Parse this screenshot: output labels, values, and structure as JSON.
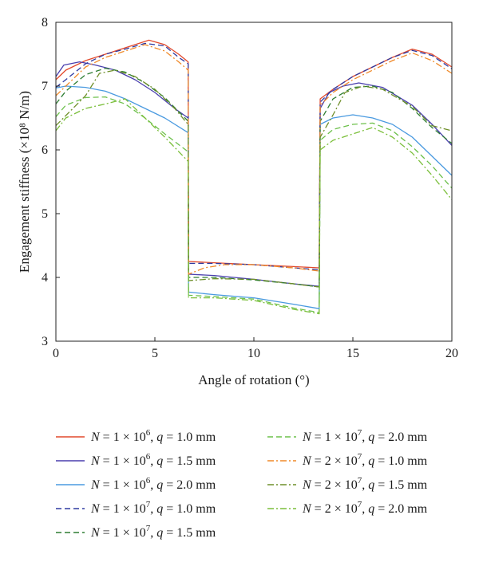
{
  "chart_data": {
    "type": "line",
    "xlabel": "Angle of rotation (°)",
    "ylabel": "Engagement stiffness (×10⁸ N/m)",
    "xlim": [
      0,
      20
    ],
    "ylim": [
      3,
      8
    ],
    "xticks": [
      0,
      5,
      10,
      15,
      20
    ],
    "yticks": [
      3,
      4,
      5,
      6,
      7,
      8
    ],
    "grid": false,
    "legend_position": "bottom",
    "series": [
      {
        "name": "N = 1 × 10^6, q = 1.0 mm",
        "label": {
          "N_mant": "1",
          "N_exp": "6",
          "q": "1.0 mm"
        },
        "color": "#e2492c",
        "dash": "solid",
        "points": [
          [
            0,
            7.1
          ],
          [
            0.5,
            7.25
          ],
          [
            1.5,
            7.4
          ],
          [
            2.5,
            7.5
          ],
          [
            3.5,
            7.6
          ],
          [
            4.7,
            7.72
          ],
          [
            5.5,
            7.65
          ],
          [
            6.2,
            7.5
          ],
          [
            6.68,
            7.38
          ],
          [
            6.7,
            4.25
          ],
          [
            8,
            4.23
          ],
          [
            10,
            4.2
          ],
          [
            12,
            4.17
          ],
          [
            13.3,
            4.15
          ],
          [
            13.35,
            6.8
          ],
          [
            14,
            6.95
          ],
          [
            15,
            7.15
          ],
          [
            16,
            7.3
          ],
          [
            17,
            7.45
          ],
          [
            18,
            7.58
          ],
          [
            19,
            7.5
          ],
          [
            20,
            7.3
          ]
        ]
      },
      {
        "name": "N = 1 × 10^6, q = 1.5 mm",
        "label": {
          "N_mant": "1",
          "N_exp": "6",
          "q": "1.5 mm"
        },
        "color": "#4a3fae",
        "dash": "solid",
        "points": [
          [
            0,
            7.15
          ],
          [
            0.4,
            7.33
          ],
          [
            1.2,
            7.38
          ],
          [
            2,
            7.33
          ],
          [
            3,
            7.25
          ],
          [
            4,
            7.1
          ],
          [
            5,
            6.9
          ],
          [
            6,
            6.65
          ],
          [
            6.68,
            6.5
          ],
          [
            6.7,
            4.05
          ],
          [
            8,
            4.03
          ],
          [
            10,
            3.97
          ],
          [
            12,
            3.9
          ],
          [
            13.3,
            3.86
          ],
          [
            13.35,
            6.65
          ],
          [
            13.8,
            6.9
          ],
          [
            14.5,
            7.0
          ],
          [
            15.3,
            7.05
          ],
          [
            16.5,
            6.98
          ],
          [
            18,
            6.7
          ],
          [
            19,
            6.4
          ],
          [
            20,
            6.07
          ]
        ]
      },
      {
        "name": "N = 1 × 10^6, q = 2.0 mm",
        "label": {
          "N_mant": "1",
          "N_exp": "6",
          "q": "2.0 mm"
        },
        "color": "#4a9ae0",
        "dash": "solid",
        "points": [
          [
            0,
            6.97
          ],
          [
            0.5,
            7.0
          ],
          [
            1.5,
            6.98
          ],
          [
            2.5,
            6.92
          ],
          [
            3.5,
            6.8
          ],
          [
            4.5,
            6.65
          ],
          [
            5.5,
            6.5
          ],
          [
            6.68,
            6.27
          ],
          [
            6.7,
            3.77
          ],
          [
            8,
            3.73
          ],
          [
            10,
            3.68
          ],
          [
            12,
            3.58
          ],
          [
            13.3,
            3.51
          ],
          [
            13.35,
            6.4
          ],
          [
            14,
            6.5
          ],
          [
            15,
            6.55
          ],
          [
            16,
            6.5
          ],
          [
            17,
            6.4
          ],
          [
            18,
            6.2
          ],
          [
            19,
            5.9
          ],
          [
            20,
            5.6
          ]
        ]
      },
      {
        "name": "N = 1 × 10^7, q = 1.0 mm",
        "label": {
          "N_mant": "1",
          "N_exp": "7",
          "q": "1.0 mm"
        },
        "color": "#2f3aa0",
        "dash": "dashed",
        "points": [
          [
            0,
            6.98
          ],
          [
            0.5,
            7.1
          ],
          [
            1.5,
            7.35
          ],
          [
            2.5,
            7.5
          ],
          [
            3.5,
            7.58
          ],
          [
            4.5,
            7.67
          ],
          [
            5.5,
            7.63
          ],
          [
            6.2,
            7.45
          ],
          [
            6.68,
            7.35
          ],
          [
            6.7,
            4.22
          ],
          [
            8,
            4.22
          ],
          [
            10,
            4.2
          ],
          [
            12,
            4.15
          ],
          [
            13.3,
            4.12
          ],
          [
            13.35,
            6.75
          ],
          [
            14,
            6.95
          ],
          [
            15,
            7.15
          ],
          [
            16,
            7.3
          ],
          [
            17,
            7.45
          ],
          [
            18,
            7.56
          ],
          [
            19,
            7.48
          ],
          [
            20,
            7.27
          ]
        ]
      },
      {
        "name": "N = 1 × 10^7, q = 1.5 mm",
        "label": {
          "N_mant": "1",
          "N_exp": "7",
          "q": "1.5 mm"
        },
        "color": "#2e7d32",
        "dash": "dashed",
        "points": [
          [
            0,
            6.72
          ],
          [
            0.5,
            6.92
          ],
          [
            1.5,
            7.18
          ],
          [
            2.5,
            7.28
          ],
          [
            3.5,
            7.22
          ],
          [
            4.5,
            7.05
          ],
          [
            5.5,
            6.82
          ],
          [
            6.68,
            6.45
          ],
          [
            6.7,
            4.0
          ],
          [
            8,
            4.0
          ],
          [
            10,
            3.96
          ],
          [
            12,
            3.9
          ],
          [
            13.3,
            3.85
          ],
          [
            13.35,
            6.45
          ],
          [
            14,
            6.8
          ],
          [
            15,
            6.98
          ],
          [
            16,
            7.0
          ],
          [
            17,
            6.9
          ],
          [
            18,
            6.65
          ],
          [
            19,
            6.35
          ],
          [
            20,
            6.1
          ]
        ]
      },
      {
        "name": "N = 1 × 10^7, q = 2.0 mm",
        "label": {
          "N_mant": "1",
          "N_exp": "7",
          "q": "2.0 mm"
        },
        "color": "#6cc04a",
        "dash": "dashed",
        "points": [
          [
            0,
            6.52
          ],
          [
            0.5,
            6.7
          ],
          [
            1.5,
            6.82
          ],
          [
            2.5,
            6.83
          ],
          [
            3.5,
            6.72
          ],
          [
            4.5,
            6.5
          ],
          [
            5.5,
            6.25
          ],
          [
            6.68,
            5.97
          ],
          [
            6.7,
            3.72
          ],
          [
            8,
            3.7
          ],
          [
            10,
            3.66
          ],
          [
            12,
            3.52
          ],
          [
            13.3,
            3.45
          ],
          [
            13.35,
            6.15
          ],
          [
            14,
            6.32
          ],
          [
            15,
            6.4
          ],
          [
            16,
            6.42
          ],
          [
            17,
            6.3
          ],
          [
            18,
            6.05
          ],
          [
            19,
            5.75
          ],
          [
            20,
            5.4
          ]
        ]
      },
      {
        "name": "N = 2 × 10^7, q = 1.0 mm",
        "label": {
          "N_mant": "2",
          "N_exp": "7",
          "q": "1.0 mm"
        },
        "color": "#f08a2a",
        "dash": "dashdot",
        "points": [
          [
            0,
            6.85
          ],
          [
            0.5,
            7.0
          ],
          [
            1.5,
            7.3
          ],
          [
            2.5,
            7.45
          ],
          [
            3.5,
            7.55
          ],
          [
            4.5,
            7.65
          ],
          [
            5.5,
            7.55
          ],
          [
            6.2,
            7.38
          ],
          [
            6.68,
            7.25
          ],
          [
            6.7,
            4.05
          ],
          [
            7.5,
            4.15
          ],
          [
            8.5,
            4.2
          ],
          [
            10,
            4.2
          ],
          [
            12,
            4.15
          ],
          [
            13.3,
            4.1
          ],
          [
            13.35,
            6.7
          ],
          [
            14,
            6.9
          ],
          [
            15,
            7.1
          ],
          [
            16,
            7.25
          ],
          [
            17,
            7.4
          ],
          [
            18,
            7.52
          ],
          [
            19,
            7.4
          ],
          [
            20,
            7.2
          ]
        ]
      },
      {
        "name": "N = 2 × 10^7, q = 1.5 mm",
        "label": {
          "N_mant": "2",
          "N_exp": "7",
          "q": "1.5 mm"
        },
        "color": "#6f8f2a",
        "dash": "dashdot",
        "points": [
          [
            0,
            6.38
          ],
          [
            0.7,
            6.6
          ],
          [
            1.5,
            6.85
          ],
          [
            2.2,
            7.2
          ],
          [
            3,
            7.25
          ],
          [
            4,
            7.15
          ],
          [
            5,
            6.95
          ],
          [
            6,
            6.65
          ],
          [
            6.68,
            6.4
          ],
          [
            6.7,
            3.95
          ],
          [
            8,
            3.98
          ],
          [
            10,
            3.97
          ],
          [
            12,
            3.9
          ],
          [
            13.3,
            3.85
          ],
          [
            13.35,
            6.2
          ],
          [
            14,
            6.55
          ],
          [
            14.6,
            6.9
          ],
          [
            15.5,
            7.0
          ],
          [
            16.5,
            6.95
          ],
          [
            18,
            6.68
          ],
          [
            19,
            6.38
          ],
          [
            20,
            6.3
          ]
        ]
      },
      {
        "name": "N = 2 × 10^7, q = 2.0 mm",
        "label": {
          "N_mant": "2",
          "N_exp": "7",
          "q": "2.0 mm"
        },
        "color": "#7bbf3a",
        "dash": "dashdot",
        "points": [
          [
            0,
            6.3
          ],
          [
            0.5,
            6.5
          ],
          [
            1.5,
            6.65
          ],
          [
            2.5,
            6.72
          ],
          [
            3.5,
            6.8
          ],
          [
            4.5,
            6.5
          ],
          [
            5.5,
            6.2
          ],
          [
            6.68,
            5.82
          ],
          [
            6.7,
            3.68
          ],
          [
            8,
            3.68
          ],
          [
            10,
            3.64
          ],
          [
            12,
            3.5
          ],
          [
            13.3,
            3.43
          ],
          [
            13.35,
            6.0
          ],
          [
            14,
            6.15
          ],
          [
            15,
            6.25
          ],
          [
            16,
            6.35
          ],
          [
            17,
            6.2
          ],
          [
            18,
            5.95
          ],
          [
            19,
            5.6
          ],
          [
            20,
            5.22
          ]
        ]
      }
    ]
  }
}
